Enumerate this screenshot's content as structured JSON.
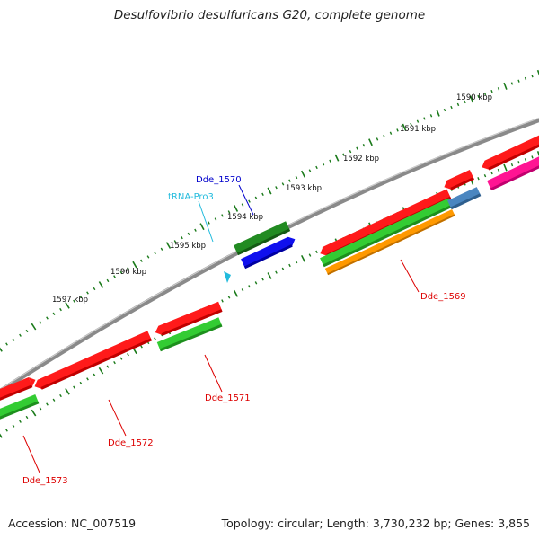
{
  "title": "Desulfovibrio desulfuricans G20, complete genome",
  "footer": {
    "accession": "Accession: NC_007519",
    "topology": "Topology: circular; Length: 3,730,232 bp; Genes: 3,855"
  },
  "colors": {
    "backbone": "#8a8a8a",
    "tick": "#1a7a1a",
    "cds": "#ff1a1a",
    "cds_dark": "#c00000",
    "green_light": "#33cc33",
    "green_dark": "#228b22",
    "blue": "#1010ee",
    "orange": "#ff9900",
    "steel": "#4a86c0",
    "pink": "#ff1493",
    "trna": "#22bbdd",
    "label_red": "#dd0000",
    "label_blue": "#0000cc",
    "label_cyan": "#22bbdd"
  },
  "kbp_labels": [
    "1590 kbp",
    "1591 kbp",
    "1592 kbp",
    "1593 kbp",
    "1594 kbp",
    "1595 kbp",
    "1596 kbp",
    "1597 kbp"
  ],
  "gene_labels": {
    "dde1569": "Dde_1569",
    "dde1570": "Dde_1570",
    "dde1571": "Dde_1571",
    "dde1572": "Dde_1572",
    "dde1573": "Dde_1573",
    "trna": "tRNA-Pro3"
  }
}
